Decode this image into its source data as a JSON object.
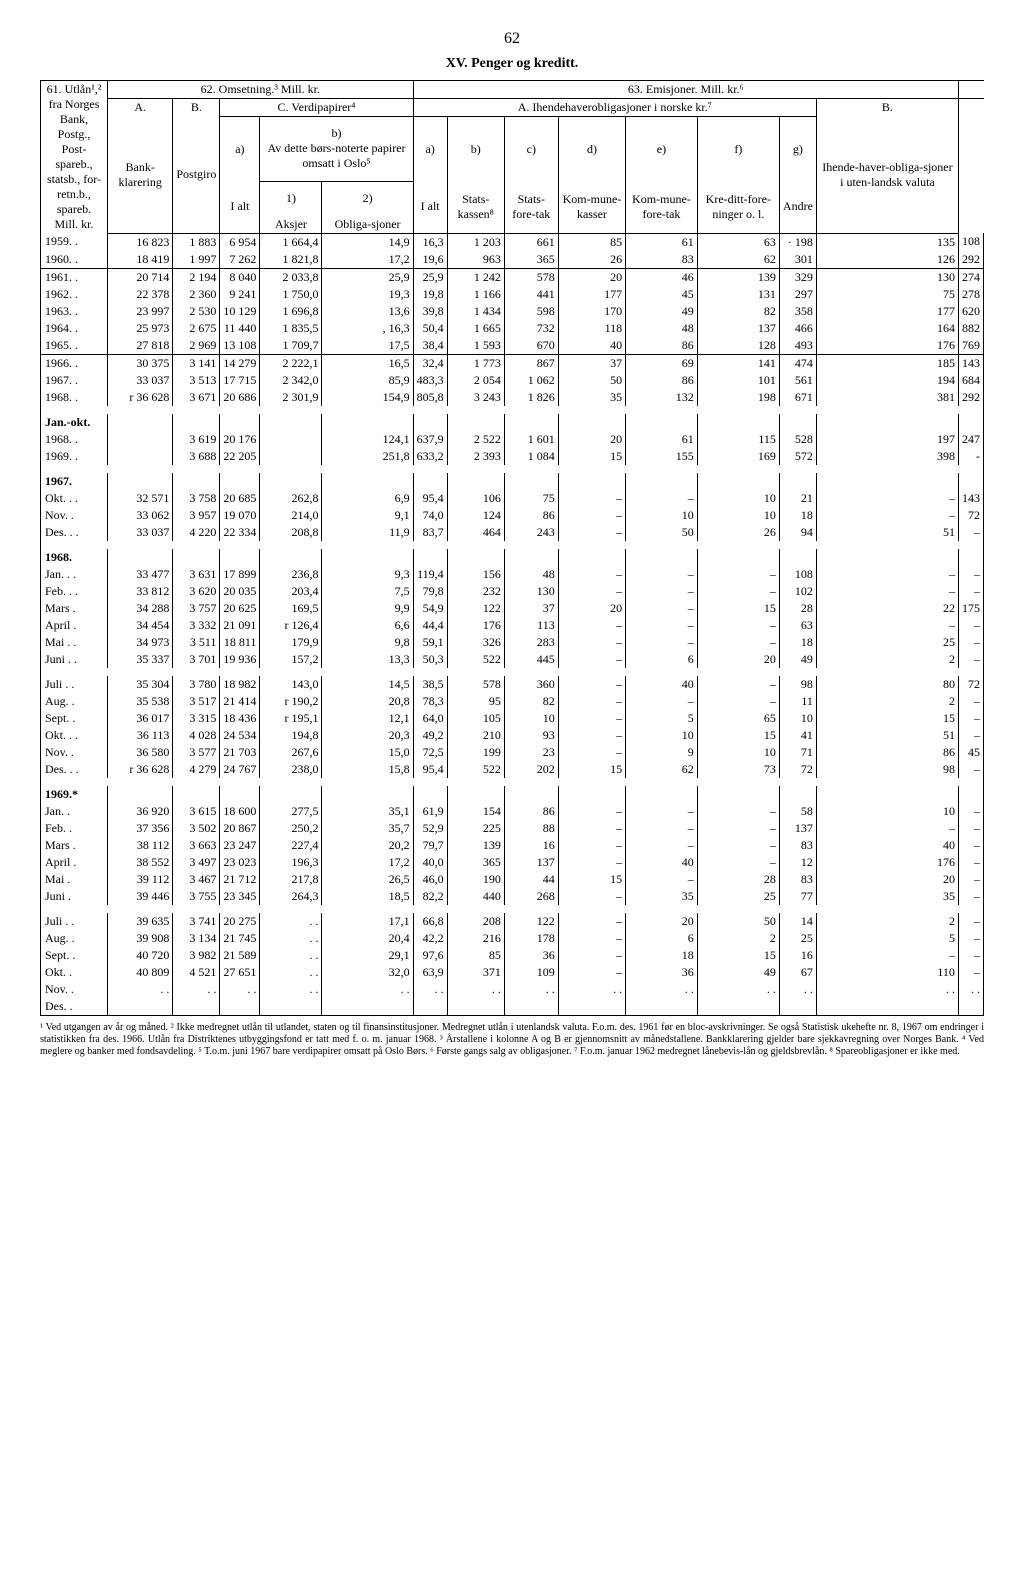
{
  "page_number": "62",
  "title": "XV. Penger og kreditt.",
  "col62": "62. Omsetning.³ Mill. kr.",
  "col63": "63. Emisjoner. Mill. kr.⁶",
  "header": {
    "c61": "61. Utlån¹,² fra Norges Bank, Postg., Post-spareb., statsb., for-retn.b., spareb. Mill. kr.",
    "A": "A.",
    "B": "B.",
    "C": "C. Verdipapirer⁴",
    "Aihende": "A. Ihendehaverobligasjoner i norske kr.⁷",
    "B2": "B.",
    "bank": "Bank-klarering",
    "postgiro": "Postgiro",
    "ialt": "I alt",
    "borsnot": "Av dette børs-noterte papirer omsatt i Oslo⁵",
    "aksjer": "Aksjer",
    "oblig": "Obliga-sjoner",
    "ialt2": "I alt",
    "statsk": "Stats-kassen⁸",
    "statsf": "Stats-fore-tak",
    "kommun": "Kom-mune-kasser",
    "kommunef": "Kom-mune-fore-tak",
    "kreditt": "Kre-ditt-fore-ninger o. l.",
    "andre": "Andre",
    "ihende": "Ihende-haver-obliga-sjoner i uten-landsk valuta",
    "a": "a)",
    "b": "b)",
    "c": "c)",
    "d": "d)",
    "e": "e)",
    "f": "f)",
    "g": "g)",
    "one": "1)",
    "two": "2)"
  },
  "rows": [
    {
      "y": "1959. .",
      "v": [
        "16 823",
        "1 883",
        "6 954",
        "1 664,4",
        "14,9",
        "16,3",
        "1 203",
        "661",
        "85",
        "61",
        "63",
        "· 198",
        "135",
        "108"
      ]
    },
    {
      "y": "1960. .",
      "v": [
        "18 419",
        "1 997",
        "7 262",
        "1 821,8",
        "17,2",
        "19,6",
        "963",
        "365",
        "26",
        "83",
        "62",
        "301",
        "126",
        "292"
      ]
    },
    {
      "y": "1961. .",
      "v": [
        "20 714",
        "2 194",
        "8 040",
        "2 033,8",
        "25,9",
        "25,9",
        "1 242",
        "578",
        "20",
        "46",
        "139",
        "329",
        "130",
        "274"
      ],
      "line": true
    },
    {
      "y": "1962. .",
      "v": [
        "22 378",
        "2 360",
        "9 241",
        "1 750,0",
        "19,3",
        "19,8",
        "1 166",
        "441",
        "177",
        "45",
        "131",
        "297",
        "75",
        "278"
      ]
    },
    {
      "y": "1963. .",
      "v": [
        "23 997",
        "2 530",
        "10 129",
        "1 696,8",
        "13,6",
        "39,8",
        "1 434",
        "598",
        "170",
        "49",
        "82",
        "358",
        "177",
        "620"
      ]
    },
    {
      "y": "1964. .",
      "v": [
        "25 973",
        "2 675",
        "11 440",
        "1 835,5",
        ", 16,3",
        "50,4",
        "1 665",
        "732",
        "118",
        "48",
        "137",
        "466",
        "164",
        "882"
      ]
    },
    {
      "y": "1965. .",
      "v": [
        "27 818",
        "2 969",
        "13 108",
        "1 709,7",
        "17,5",
        "38,4",
        "1 593",
        "670",
        "40",
        "86",
        "128",
        "493",
        "176",
        "769"
      ]
    },
    {
      "y": "1966. .",
      "v": [
        "30 375",
        "3 141",
        "14 279",
        "2 222,1",
        "16,5",
        "32,4",
        "1 773",
        "867",
        "37",
        "69",
        "141",
        "474",
        "185",
        "143"
      ],
      "line": true
    },
    {
      "y": "1967. .",
      "v": [
        "33 037",
        "3 513",
        "17 715",
        "2 342,0",
        "85,9",
        "483,3",
        "2 054",
        "1 062",
        "50",
        "86",
        "101",
        "561",
        "194",
        "684"
      ]
    },
    {
      "y": "1968. .",
      "v": [
        "r 36 628",
        "3 671",
        "20 686",
        "2 301,9",
        "154,9",
        "805,8",
        "3 243",
        "1 826",
        "35",
        "132",
        "198",
        "671",
        "381",
        "292"
      ]
    }
  ],
  "janokt_label": "Jan.-okt.",
  "janokt": [
    {
      "y": "1968. .",
      "v": [
        "",
        "3 619",
        "20 176",
        "",
        "124,1",
        "637,9",
        "2 522",
        "1 601",
        "20",
        "61",
        "115",
        "528",
        "197",
        "247"
      ]
    },
    {
      "y": "1969. .",
      "v": [
        "",
        "3 688",
        "22 205",
        "",
        "251,8",
        "633,2",
        "2 393",
        "1 084",
        "15",
        "155",
        "169",
        "572",
        "398",
        "-"
      ]
    }
  ],
  "y1967_label": "1967.",
  "y1967": [
    {
      "y": "Okt. . .",
      "v": [
        "32 571",
        "3 758",
        "20 685",
        "262,8",
        "6,9",
        "95,4",
        "106",
        "75",
        "–",
        "–",
        "10",
        "21",
        "–",
        "143"
      ]
    },
    {
      "y": "Nov. .",
      "v": [
        "33 062",
        "3 957",
        "19 070",
        "214,0",
        "9,1",
        "74,0",
        "124",
        "86",
        "–",
        "10",
        "10",
        "18",
        "–",
        "72"
      ]
    },
    {
      "y": "Des. . .",
      "v": [
        "33 037",
        "4 220",
        "22 334",
        "208,8",
        "11,9",
        "83,7",
        "464",
        "243",
        "–",
        "50",
        "26",
        "94",
        "51",
        "–"
      ]
    }
  ],
  "y1968_label": "1968.",
  "y1968": [
    {
      "y": "Jan. . .",
      "v": [
        "33 477",
        "3 631",
        "17 899",
        "236,8",
        "9,3",
        "119,4",
        "156",
        "48",
        "–",
        "–",
        "–",
        "108",
        "–",
        "–"
      ]
    },
    {
      "y": "Feb. . .",
      "v": [
        "33 812",
        "3 620",
        "20 035",
        "203,4",
        "7,5",
        "79,8",
        "232",
        "130",
        "–",
        "–",
        "–",
        "102",
        "–",
        "–"
      ]
    },
    {
      "y": "Mars .",
      "v": [
        "34 288",
        "3 757",
        "20 625",
        "169,5",
        "9,9",
        "54,9",
        "122",
        "37",
        "20",
        "–",
        "15",
        "28",
        "22",
        "175"
      ]
    },
    {
      "y": "April .",
      "v": [
        "34 454",
        "3 332",
        "21 091",
        "r  126,4",
        "6,6",
        "44,4",
        "176",
        "113",
        "–",
        "–",
        "–",
        "63",
        "–",
        "–"
      ]
    },
    {
      "y": "Mai . .",
      "v": [
        "34 973",
        "3 511",
        "18 811",
        "179,9",
        "9,8",
        "59,1",
        "326",
        "283",
        "–",
        "–",
        "–",
        "18",
        "25",
        "–"
      ]
    },
    {
      "y": "Juni . .",
      "v": [
        "35 337",
        "3 701",
        "19 936",
        "157,2",
        "13,3",
        "50,3",
        "522",
        "445",
        "–",
        "6",
        "20",
        "49",
        "2",
        "–"
      ]
    }
  ],
  "y1968b": [
    {
      "y": "Juli . .",
      "v": [
        "35 304",
        "3 780",
        "18 982",
        "143,0",
        "14,5",
        "38,5",
        "578",
        "360",
        "–",
        "40",
        "–",
        "98",
        "80",
        "72"
      ]
    },
    {
      "y": "Aug. .",
      "v": [
        "35 538",
        "3 517",
        "21 414",
        "r  190,2",
        "20,8",
        "78,3",
        "95",
        "82",
        "–",
        "–",
        "–",
        "11",
        "2",
        "–"
      ]
    },
    {
      "y": "Sept. .",
      "v": [
        "36 017",
        "3 315",
        "18 436",
        "r  195,1",
        "12,1",
        "64,0",
        "105",
        "10",
        "–",
        "5",
        "65",
        "10",
        "15",
        "–"
      ]
    },
    {
      "y": "Okt. . .",
      "v": [
        "36 113",
        "4 028",
        "24 534",
        "194,8",
        "20,3",
        "49,2",
        "210",
        "93",
        "–",
        "10",
        "15",
        "41",
        "51",
        "–"
      ]
    },
    {
      "y": "Nov. .",
      "v": [
        "36 580",
        "3 577",
        "21 703",
        "267,6",
        "15,0",
        "72,5",
        "199",
        "23",
        "–",
        "9",
        "10",
        "71",
        "86",
        "45"
      ]
    },
    {
      "y": "Des. . .",
      "v": [
        "r 36 628",
        "4 279",
        "24 767",
        "238,0",
        "15,8",
        "95,4",
        "522",
        "202",
        "15",
        "62",
        "73",
        "72",
        "98",
        "–"
      ]
    }
  ],
  "y1969_label": "1969.*",
  "y1969": [
    {
      "y": "Jan.  .",
      "v": [
        "36 920",
        "3 615",
        "18 600",
        "277,5",
        "35,1",
        "61,9",
        "154",
        "86",
        "–",
        "–",
        "–",
        "58",
        "10",
        "–"
      ]
    },
    {
      "y": "Feb.  .",
      "v": [
        "37 356",
        "3 502",
        "20 867",
        "250,2",
        "35,7",
        "52,9",
        "225",
        "88",
        "–",
        "–",
        "–",
        "137",
        "–",
        "–"
      ]
    },
    {
      "y": "Mars .",
      "v": [
        "38 112",
        "3 663",
        "23 247",
        "227,4",
        "20,2",
        "79,7",
        "139",
        "16",
        "–",
        "–",
        "–",
        "83",
        "40",
        "–"
      ]
    },
    {
      "y": "April .",
      "v": [
        "38 552",
        "3 497",
        "23 023",
        "196,3",
        "17,2",
        "40,0",
        "365",
        "137",
        "–",
        "40",
        "–",
        "12",
        "176",
        "–"
      ]
    },
    {
      "y": "Mai   .",
      "v": [
        "39 112",
        "3 467",
        "21 712",
        "217,8",
        "26,5",
        "46,0",
        "190",
        "44",
        "15",
        "–",
        "28",
        "83",
        "20",
        "–"
      ]
    },
    {
      "y": "Juni  .",
      "v": [
        "39 446",
        "3 755",
        "23 345",
        "264,3",
        "18,5",
        "82,2",
        "440",
        "268",
        "–",
        "35",
        "25",
        "77",
        "35",
        "–"
      ]
    }
  ],
  "y1969b": [
    {
      "y": "Juli . .",
      "v": [
        "39 635",
        "3 741",
        "20 275",
        ". .",
        "17,1",
        "66,8",
        "208",
        "122",
        "–",
        "20",
        "50",
        "14",
        "2",
        "–"
      ]
    },
    {
      "y": "Aug. .",
      "v": [
        "39 908",
        "3 134",
        "21 745",
        ". .",
        "20,4",
        "42,2",
        "216",
        "178",
        "–",
        "6",
        "2",
        "25",
        "5",
        "–"
      ]
    },
    {
      "y": "Sept. .",
      "v": [
        "40 720",
        "3 982",
        "21 589",
        ". .",
        "29,1",
        "97,6",
        "85",
        "36",
        "–",
        "18",
        "15",
        "16",
        "–",
        "–"
      ]
    },
    {
      "y": "Okt.  .",
      "v": [
        "40 809",
        "4 521",
        "27 651",
        ". .",
        "32,0",
        "63,9",
        "371",
        "109",
        "–",
        "36",
        "49",
        "67",
        "110",
        "–"
      ]
    },
    {
      "y": "Nov.  .",
      "v": [
        ". .",
        ". .",
        ". .",
        ". .",
        ". .",
        ". .",
        ". .",
        ". .",
        ". .",
        ". .",
        ". .",
        ". .",
        ". .",
        ". ."
      ]
    },
    {
      "y": "Des.  .",
      "v": [
        "",
        "",
        "",
        "",
        "",
        "",
        "",
        "",
        "",
        "",
        "",
        "",
        "",
        ""
      ]
    }
  ],
  "footnotes": "¹ Ved utgangen av år og måned.  ² Ikke medregnet utlån til utlandet, staten og til finansinstitusjoner. Medregnet utlån i utenlandsk valuta. F.o.m. des. 1961 før en bloc-avskrivninger. Se også Statistisk ukehefte nr. 8, 1967 om endringer i statistikken fra des. 1966. Utlån fra Distriktenes utbyggingsfond er tatt med f. o. m. januar 1968. ³ Årstallene i kolonne A og B er gjennomsnitt av månedstallene. Bankklarering gjelder bare sjekkavregning over Norges Bank. ⁴ Ved meglere og banker med fondsavdeling. ⁵ T.o.m. juni 1967 bare verdipapirer omsatt på Oslo Børs. ⁶ Første gangs salg av obligasjoner. ⁷ F.o.m. januar 1962 medregnet lånebevis-lån og gjeldsbrevlån. ⁸ Spareobligasjoner er ikke med."
}
